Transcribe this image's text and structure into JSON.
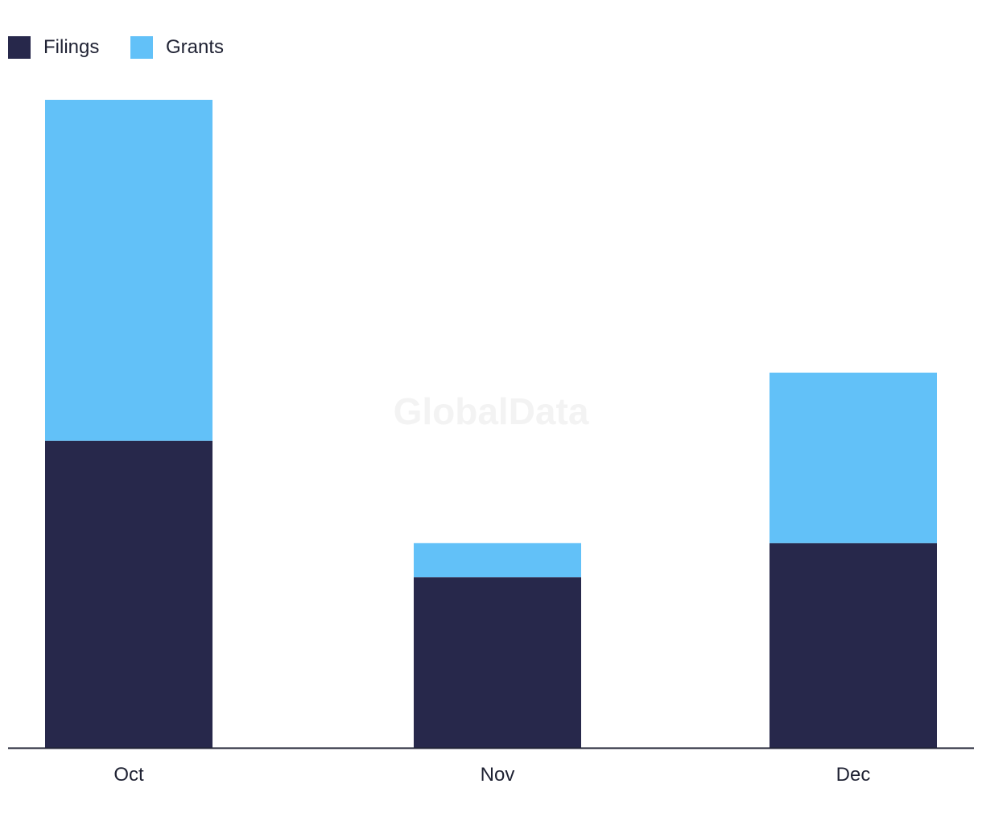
{
  "chart_data": {
    "type": "bar",
    "stacked": true,
    "categories": [
      "Oct",
      "Nov",
      "Dec"
    ],
    "series": [
      {
        "name": "Filings",
        "color": "#27284b",
        "values": [
          9,
          5,
          6
        ]
      },
      {
        "name": "Grants",
        "color": "#62c1f8",
        "values": [
          10,
          1,
          5
        ]
      }
    ],
    "ylim": [
      0,
      19
    ],
    "grid": false,
    "legend_position": "top-left",
    "watermark": "GlobalData"
  }
}
